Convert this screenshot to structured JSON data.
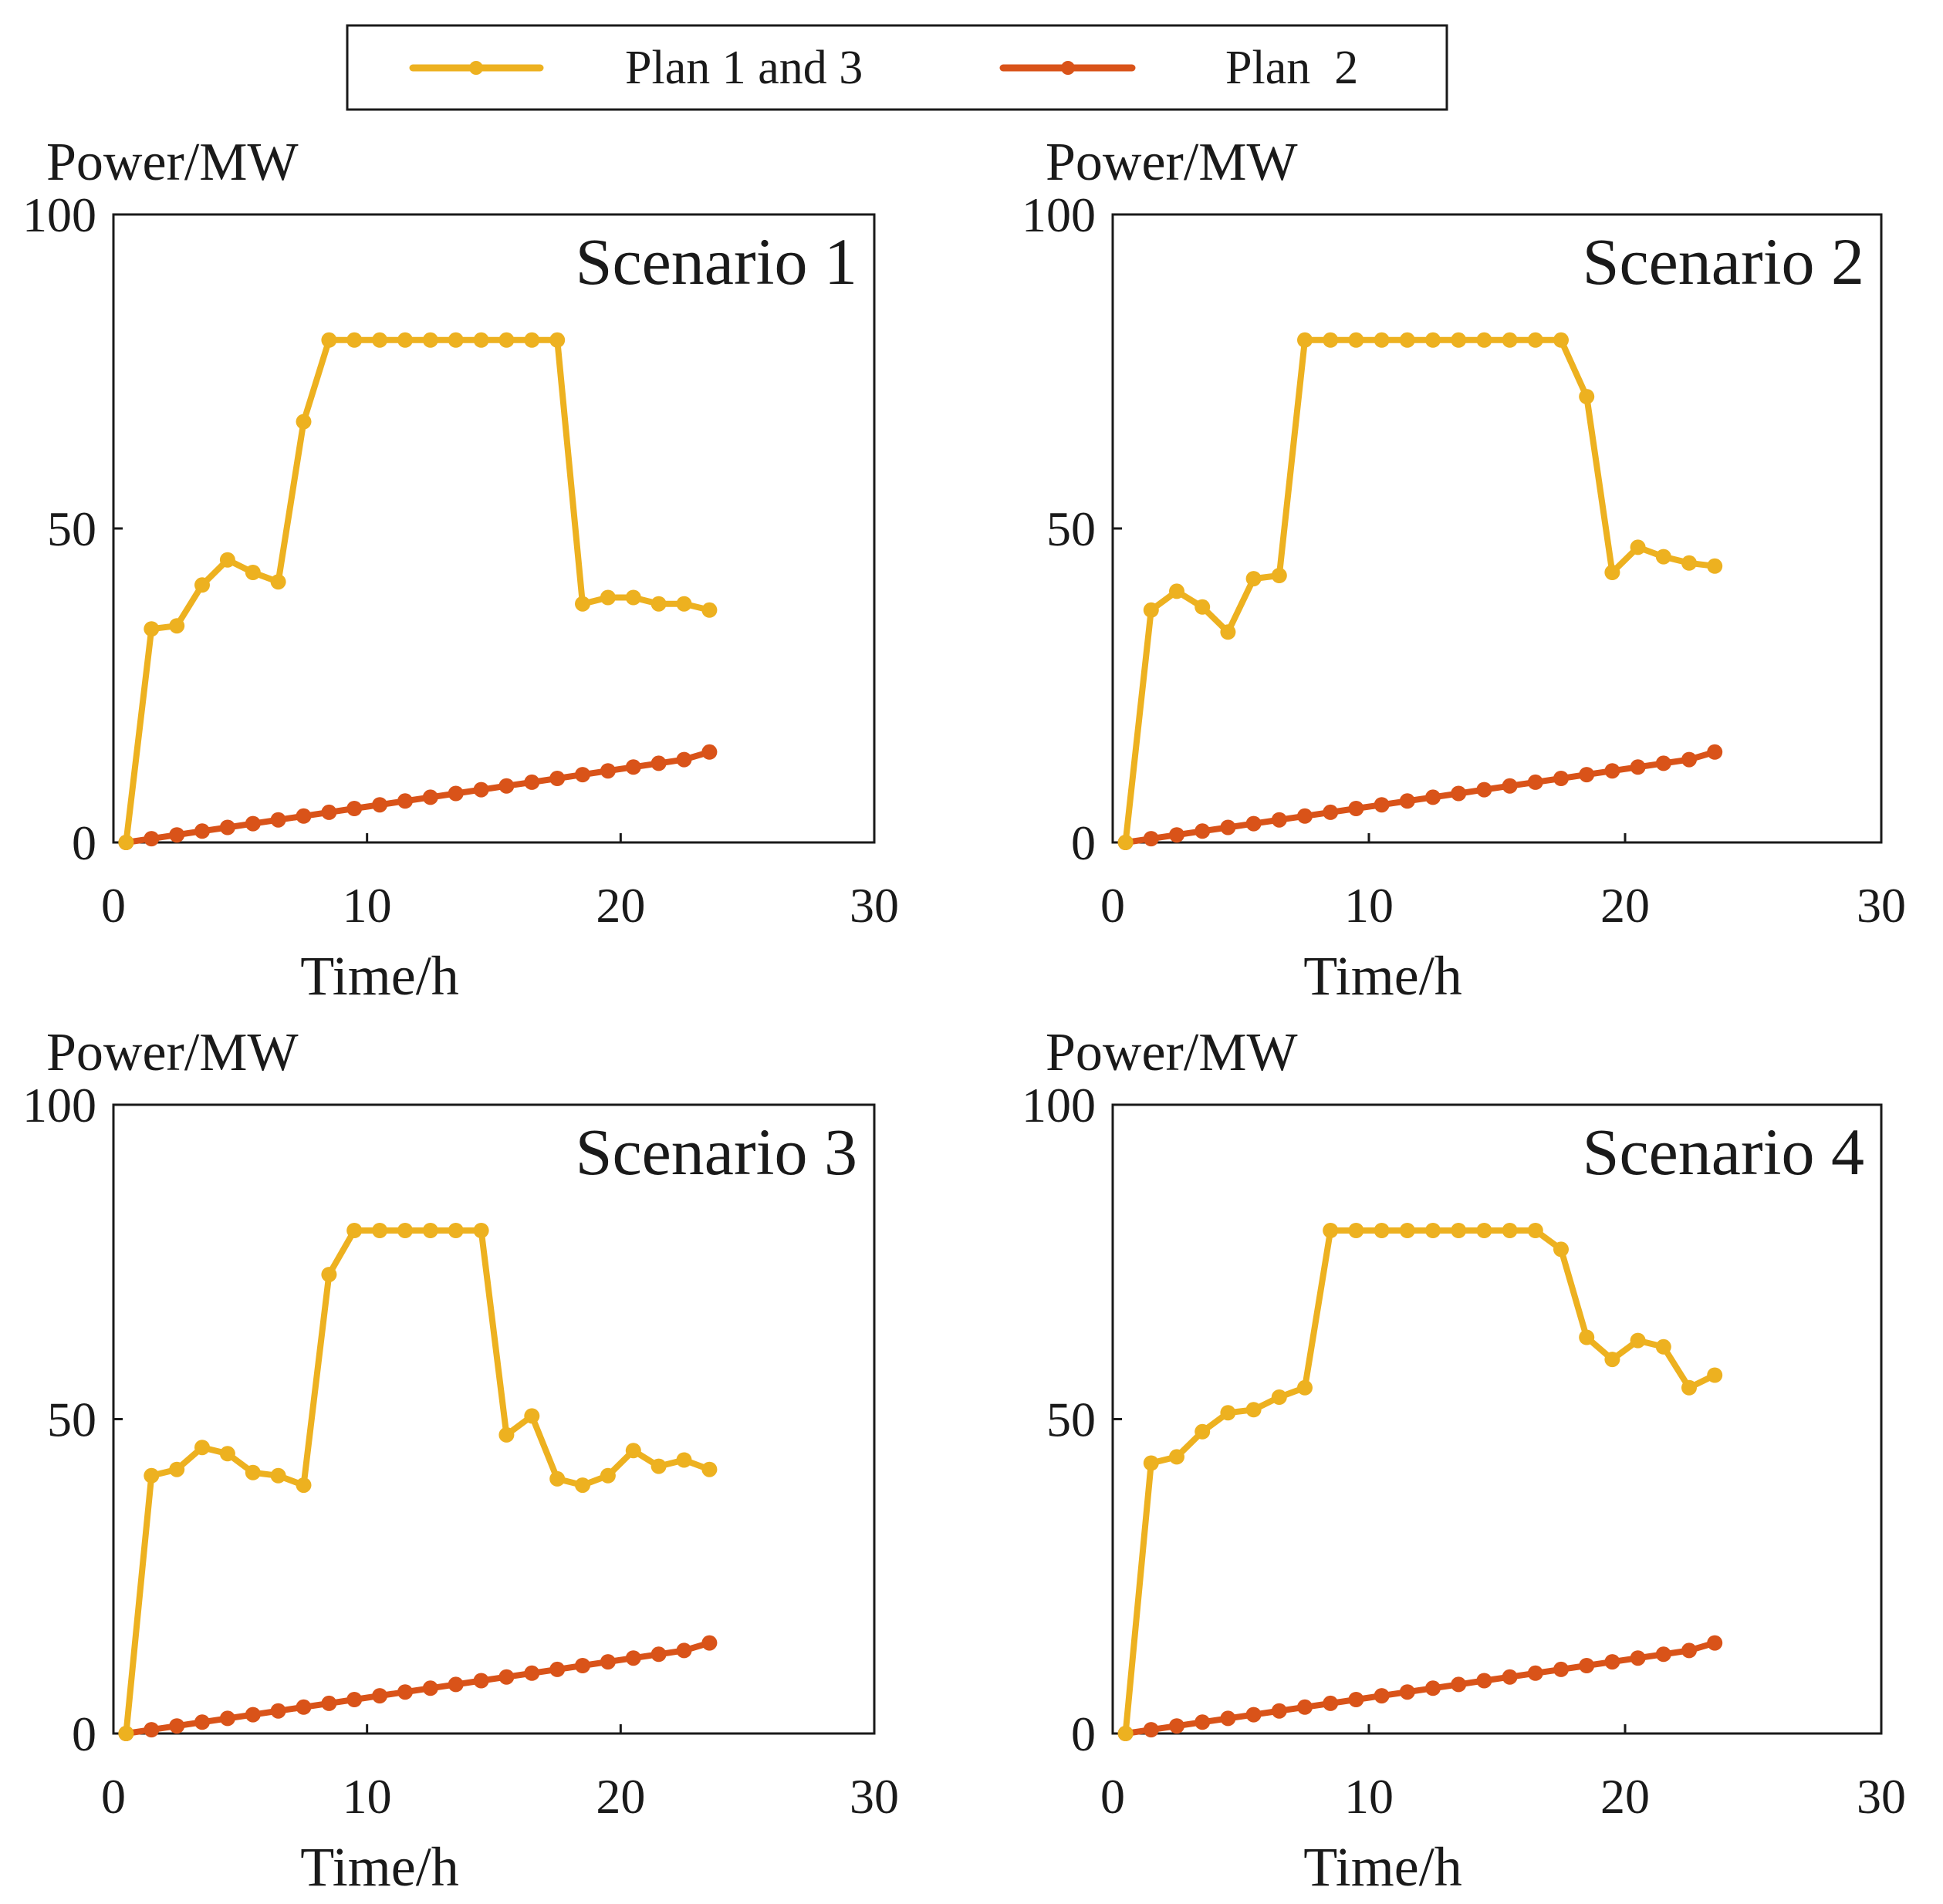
{
  "legend": {
    "items": [
      {
        "label": "Plan 1 and 3",
        "color": "#EDB120"
      },
      {
        "label": "Plan  2",
        "color": "#D95319"
      }
    ]
  },
  "chart_data": [
    {
      "type": "line",
      "title": "Scenario 1",
      "xlabel": "Time/h",
      "ylabel": "Power/MW",
      "xlim": [
        0,
        30
      ],
      "ylim": [
        0,
        100
      ],
      "xticks": [
        0,
        10,
        20,
        30
      ],
      "yticks": [
        0,
        50,
        100
      ],
      "x": [
        0.5,
        1.5,
        2.5,
        3.5,
        4.5,
        5.5,
        6.5,
        7.5,
        8.5,
        9.5,
        10.5,
        11.5,
        12.5,
        13.5,
        14.5,
        15.5,
        16.5,
        17.5,
        18.5,
        19.5,
        20.5,
        21.5,
        22.5,
        23.5
      ],
      "series": [
        {
          "name": "Plan 1 and 3",
          "color": "#EDB120",
          "values": [
            0,
            34,
            34.5,
            41,
            45,
            43,
            41.5,
            67,
            80,
            80,
            80,
            80,
            80,
            80,
            80,
            80,
            80,
            80,
            38,
            39,
            39,
            38,
            38,
            37
          ]
        },
        {
          "name": "Plan  2",
          "color": "#D95319",
          "values": [
            0,
            0.6,
            1.2,
            1.8,
            2.4,
            3,
            3.6,
            4.2,
            4.8,
            5.4,
            6,
            6.6,
            7.2,
            7.8,
            8.4,
            9,
            9.6,
            10.2,
            10.8,
            11.4,
            12,
            12.6,
            13.2,
            14.4
          ]
        }
      ]
    },
    {
      "type": "line",
      "title": "Scenario 2",
      "xlabel": "Time/h",
      "ylabel": "Power/MW",
      "xlim": [
        0,
        30
      ],
      "ylim": [
        0,
        100
      ],
      "xticks": [
        0,
        10,
        20,
        30
      ],
      "yticks": [
        0,
        50,
        100
      ],
      "x": [
        0.5,
        1.5,
        2.5,
        3.5,
        4.5,
        5.5,
        6.5,
        7.5,
        8.5,
        9.5,
        10.5,
        11.5,
        12.5,
        13.5,
        14.5,
        15.5,
        16.5,
        17.5,
        18.5,
        19.5,
        20.5,
        21.5,
        22.5,
        23.5
      ],
      "series": [
        {
          "name": "Plan 1 and 3",
          "color": "#EDB120",
          "values": [
            0,
            37,
            40,
            37.5,
            33.5,
            42,
            42.5,
            80,
            80,
            80,
            80,
            80,
            80,
            80,
            80,
            80,
            80,
            80,
            71,
            43,
            47,
            45.5,
            44.5,
            44
          ]
        },
        {
          "name": "Plan  2",
          "color": "#D95319",
          "values": [
            0,
            0.6,
            1.2,
            1.8,
            2.4,
            3,
            3.6,
            4.2,
            4.8,
            5.4,
            6,
            6.6,
            7.2,
            7.8,
            8.4,
            9,
            9.6,
            10.2,
            10.8,
            11.4,
            12,
            12.6,
            13.2,
            14.4
          ]
        }
      ]
    },
    {
      "type": "line",
      "title": "Scenario 3",
      "xlabel": "Time/h",
      "ylabel": "Power/MW",
      "xlim": [
        0,
        30
      ],
      "ylim": [
        0,
        100
      ],
      "xticks": [
        0,
        10,
        20,
        30
      ],
      "yticks": [
        0,
        50,
        100
      ],
      "x": [
        0.5,
        1.5,
        2.5,
        3.5,
        4.5,
        5.5,
        6.5,
        7.5,
        8.5,
        9.5,
        10.5,
        11.5,
        12.5,
        13.5,
        14.5,
        15.5,
        16.5,
        17.5,
        18.5,
        19.5,
        20.5,
        21.5,
        22.5,
        23.5
      ],
      "series": [
        {
          "name": "Plan 1 and 3",
          "color": "#EDB120",
          "values": [
            0,
            41,
            42,
            45.5,
            44.5,
            41.5,
            41,
            39.5,
            73,
            80,
            80,
            80,
            80,
            80,
            80,
            47.5,
            50.5,
            40.5,
            39.5,
            41,
            45,
            42.5,
            43.5,
            42
          ]
        },
        {
          "name": "Plan  2",
          "color": "#D95319",
          "values": [
            0,
            0.6,
            1.2,
            1.8,
            2.4,
            3,
            3.6,
            4.2,
            4.8,
            5.4,
            6,
            6.6,
            7.2,
            7.8,
            8.4,
            9,
            9.6,
            10.2,
            10.8,
            11.4,
            12,
            12.6,
            13.2,
            14.4
          ]
        }
      ]
    },
    {
      "type": "line",
      "title": "Scenario 4",
      "xlabel": "Time/h",
      "ylabel": "Power/MW",
      "xlim": [
        0,
        30
      ],
      "ylim": [
        0,
        100
      ],
      "xticks": [
        0,
        10,
        20,
        30
      ],
      "yticks": [
        0,
        50,
        100
      ],
      "x": [
        0.5,
        1.5,
        2.5,
        3.5,
        4.5,
        5.5,
        6.5,
        7.5,
        8.5,
        9.5,
        10.5,
        11.5,
        12.5,
        13.5,
        14.5,
        15.5,
        16.5,
        17.5,
        18.5,
        19.5,
        20.5,
        21.5,
        22.5,
        23.5
      ],
      "series": [
        {
          "name": "Plan 1 and 3",
          "color": "#EDB120",
          "values": [
            0,
            43,
            44,
            48,
            51,
            51.5,
            53.5,
            55,
            80,
            80,
            80,
            80,
            80,
            80,
            80,
            80,
            80,
            77,
            63,
            59.5,
            62.5,
            61.5,
            55,
            57
          ]
        },
        {
          "name": "Plan  2",
          "color": "#D95319",
          "values": [
            0,
            0.6,
            1.2,
            1.8,
            2.4,
            3,
            3.6,
            4.2,
            4.8,
            5.4,
            6,
            6.6,
            7.2,
            7.8,
            8.4,
            9,
            9.6,
            10.2,
            10.8,
            11.4,
            12,
            12.6,
            13.2,
            14.4
          ]
        }
      ]
    }
  ]
}
